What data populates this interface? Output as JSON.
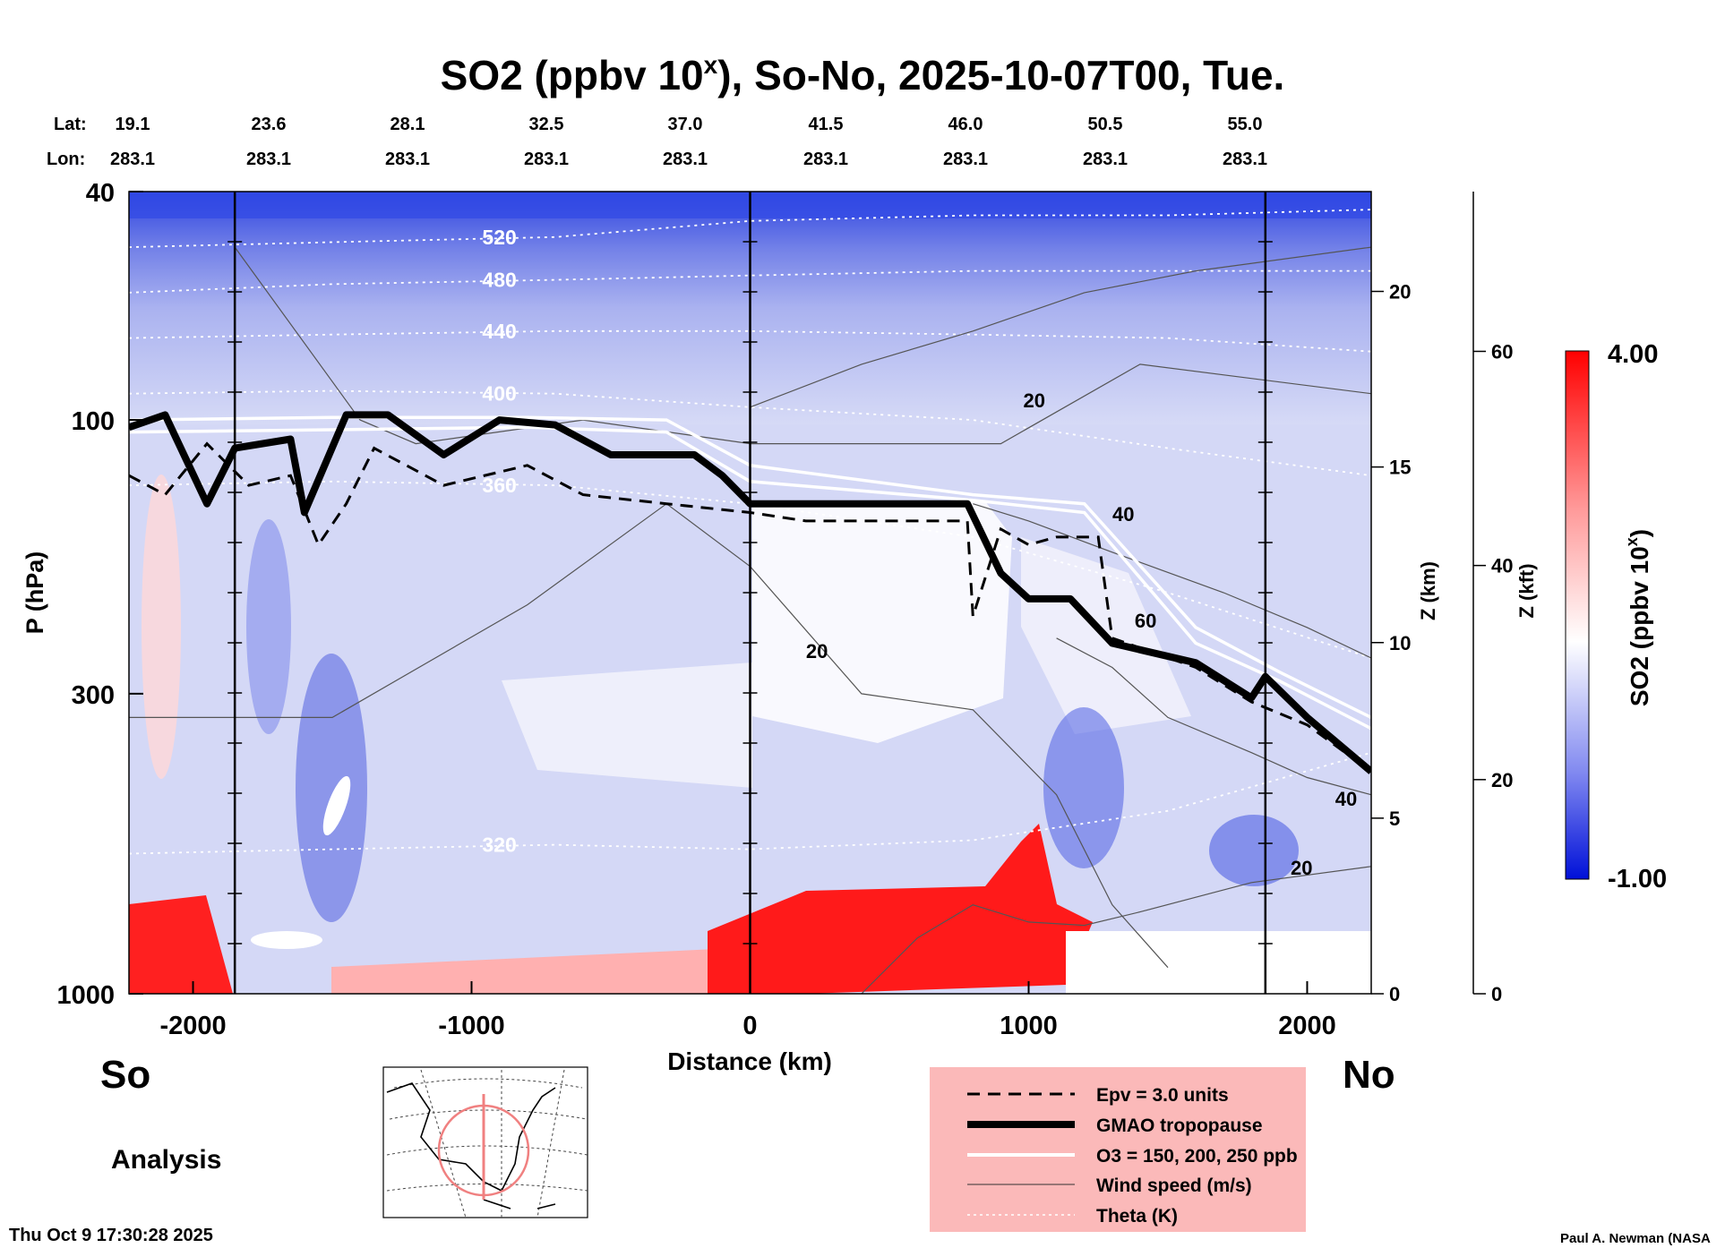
{
  "title": "SO2 (ppbv 10",
  "title_sup": "x",
  "title_rest": "), So-No, 2025-10-07T00, Tue.",
  "header": {
    "lat_label": "Lat:",
    "lon_label": "Lon:",
    "lats": [
      "19.1",
      "23.6",
      "28.1",
      "32.5",
      "37.0",
      "41.5",
      "46.0",
      "50.5",
      "55.0"
    ],
    "lons": [
      "283.1",
      "283.1",
      "283.1",
      "283.1",
      "283.1",
      "283.1",
      "283.1",
      "283.1",
      "283.1"
    ]
  },
  "left_side": "So",
  "right_side": "No",
  "analysis_label": "Analysis",
  "timestamp": "Thu Oct  9 17:30:28 2025",
  "credit": "Paul A. Newman (NASA",
  "colorbar": {
    "label": "SO2 (ppbv 10",
    "label_sup": "x",
    "label_end": ")",
    "max_label": "4.00",
    "min_label": "-1.00",
    "colors": [
      "#0000d0",
      "#ffffff",
      "#ff0000"
    ]
  },
  "legend": {
    "items": [
      {
        "label": "Epv = 3.0 units"
      },
      {
        "label": "GMAO tropopause"
      },
      {
        "label": "O3 = 150, 200, 250 ppb"
      },
      {
        "label": "Wind speed (m/s)"
      },
      {
        "label": "Theta (K)"
      }
    ]
  },
  "chart_data": {
    "type": "heatmap",
    "xlabel": "Distance (km)",
    "ylabel": "P (hPa)",
    "y2label": "Z (km)",
    "y3label": "Z (kft)",
    "xlim": [
      -2230,
      2230
    ],
    "ylim": [
      1000,
      40
    ],
    "x_ticks": [
      -2000,
      -1000,
      0,
      1000,
      2000
    ],
    "x_tick_labels": [
      "-2000",
      "-1000",
      "0",
      "1000",
      "2000"
    ],
    "y_ticks": [
      40,
      100,
      300,
      1000
    ],
    "y_tick_labels": [
      "40",
      "100",
      "300",
      "1000"
    ],
    "z_km_ticks": [
      0,
      5,
      10,
      15,
      20
    ],
    "z_kft_ticks": [
      0,
      20,
      40,
      60
    ],
    "vertical_lines_km": [
      -1850,
      0,
      1850
    ],
    "value_range": [
      -1.0,
      4.0
    ],
    "theta_contours": [
      {
        "label": "520",
        "pts": [
          [
            -2230,
            50
          ],
          [
            -1500,
            49
          ],
          [
            -700,
            48
          ],
          [
            0,
            45
          ],
          [
            800,
            44
          ],
          [
            1500,
            44
          ],
          [
            2230,
            43
          ]
        ]
      },
      {
        "label": "480",
        "pts": [
          [
            -2230,
            60
          ],
          [
            -1500,
            58
          ],
          [
            -700,
            57
          ],
          [
            0,
            56
          ],
          [
            800,
            55
          ],
          [
            1500,
            55
          ],
          [
            2230,
            55
          ]
        ]
      },
      {
        "label": "440",
        "pts": [
          [
            -2230,
            72
          ],
          [
            -1500,
            71
          ],
          [
            -700,
            70
          ],
          [
            0,
            70
          ],
          [
            800,
            71
          ],
          [
            1500,
            72
          ],
          [
            2230,
            76
          ]
        ]
      },
      {
        "label": "400",
        "pts": [
          [
            -2230,
            90
          ],
          [
            -1500,
            89
          ],
          [
            -700,
            90
          ],
          [
            0,
            95
          ],
          [
            800,
            100
          ],
          [
            1500,
            112
          ],
          [
            2230,
            125
          ]
        ]
      },
      {
        "label": "360",
        "pts": [
          [
            -2230,
            130
          ],
          [
            -1500,
            128
          ],
          [
            -700,
            130
          ],
          [
            0,
            140
          ],
          [
            800,
            160
          ],
          [
            1500,
            200
          ],
          [
            2230,
            260
          ]
        ]
      },
      {
        "label": "320",
        "pts": [
          [
            -2230,
            570
          ],
          [
            -1500,
            560
          ],
          [
            -700,
            550
          ],
          [
            0,
            560
          ],
          [
            800,
            540
          ],
          [
            1500,
            480
          ],
          [
            2230,
            380
          ]
        ]
      }
    ],
    "wind_labels": [
      {
        "label": "20",
        "x": 1020,
        "p": 95
      },
      {
        "label": "40",
        "x": 1340,
        "p": 150
      },
      {
        "label": "20",
        "x": 240,
        "p": 260
      },
      {
        "label": "60",
        "x": 1420,
        "p": 230
      },
      {
        "label": "40",
        "x": 2140,
        "p": 470
      },
      {
        "label": "20",
        "x": 1980,
        "p": 620
      }
    ],
    "tropopause": [
      [
        -2230,
        103
      ],
      [
        -2100,
        98
      ],
      [
        -1950,
        140
      ],
      [
        -1850,
        112
      ],
      [
        -1650,
        108
      ],
      [
        -1600,
        145
      ],
      [
        -1450,
        98
      ],
      [
        -1300,
        98
      ],
      [
        -1100,
        115
      ],
      [
        -900,
        100
      ],
      [
        -700,
        102
      ],
      [
        -500,
        115
      ],
      [
        -200,
        115
      ],
      [
        -100,
        125
      ],
      [
        0,
        140
      ],
      [
        780,
        140
      ],
      [
        900,
        185
      ],
      [
        1000,
        205
      ],
      [
        1150,
        205
      ],
      [
        1300,
        245
      ],
      [
        1600,
        265
      ],
      [
        1800,
        305
      ],
      [
        1850,
        280
      ],
      [
        2000,
        330
      ],
      [
        2230,
        410
      ]
    ],
    "epv": [
      [
        -2230,
        125
      ],
      [
        -2100,
        135
      ],
      [
        -1950,
        110
      ],
      [
        -1800,
        130
      ],
      [
        -1650,
        125
      ],
      [
        -1550,
        165
      ],
      [
        -1450,
        140
      ],
      [
        -1350,
        112
      ],
      [
        -1100,
        130
      ],
      [
        -800,
        120
      ],
      [
        -600,
        135
      ],
      [
        -300,
        140
      ],
      [
        0,
        145
      ],
      [
        200,
        150
      ],
      [
        780,
        150
      ],
      [
        800,
        220
      ],
      [
        900,
        155
      ],
      [
        1000,
        165
      ],
      [
        1100,
        160
      ],
      [
        1250,
        160
      ],
      [
        1300,
        240
      ],
      [
        1600,
        270
      ],
      [
        1800,
        310
      ],
      [
        2000,
        340
      ],
      [
        2230,
        410
      ]
    ],
    "o3_contours": [
      {
        "pts": [
          [
            -2230,
            100
          ],
          [
            -1500,
            99
          ],
          [
            -800,
            99
          ],
          [
            -300,
            100
          ],
          [
            0,
            120
          ],
          [
            800,
            135
          ],
          [
            1200,
            140
          ],
          [
            1600,
            230
          ],
          [
            1900,
            275
          ],
          [
            2230,
            330
          ]
        ]
      },
      {
        "pts": [
          [
            -2230,
            105
          ],
          [
            -1500,
            104
          ],
          [
            -800,
            103
          ],
          [
            -300,
            105
          ],
          [
            0,
            128
          ],
          [
            800,
            138
          ],
          [
            1200,
            145
          ],
          [
            1600,
            245
          ],
          [
            1900,
            285
          ],
          [
            2230,
            345
          ]
        ]
      }
    ]
  }
}
